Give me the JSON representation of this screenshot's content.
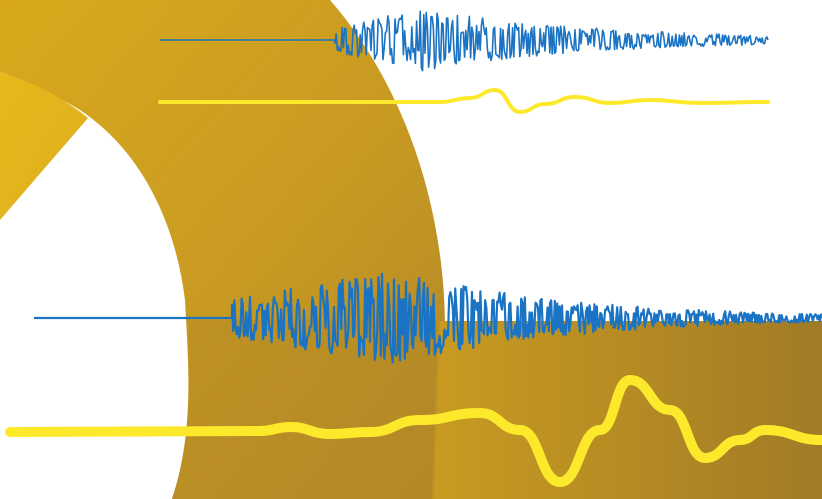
{
  "colors": {
    "background": "#ffffff",
    "gold_light": "#e3b21c",
    "gold_mid": "#c99a1f",
    "gold_dark": "#a07a25",
    "gold_band": "#caa022",
    "seismogram_blue": "#1a73c3",
    "wave_yellow": "#fde92c"
  },
  "traces": [
    {
      "role": "high-frequency-seismogram",
      "color": "#1a73c3"
    },
    {
      "role": "low-frequency-wave",
      "color": "#fde92c"
    },
    {
      "role": "high-frequency-seismogram",
      "color": "#1a73c3"
    },
    {
      "role": "low-frequency-wave",
      "color": "#fde92c"
    }
  ]
}
